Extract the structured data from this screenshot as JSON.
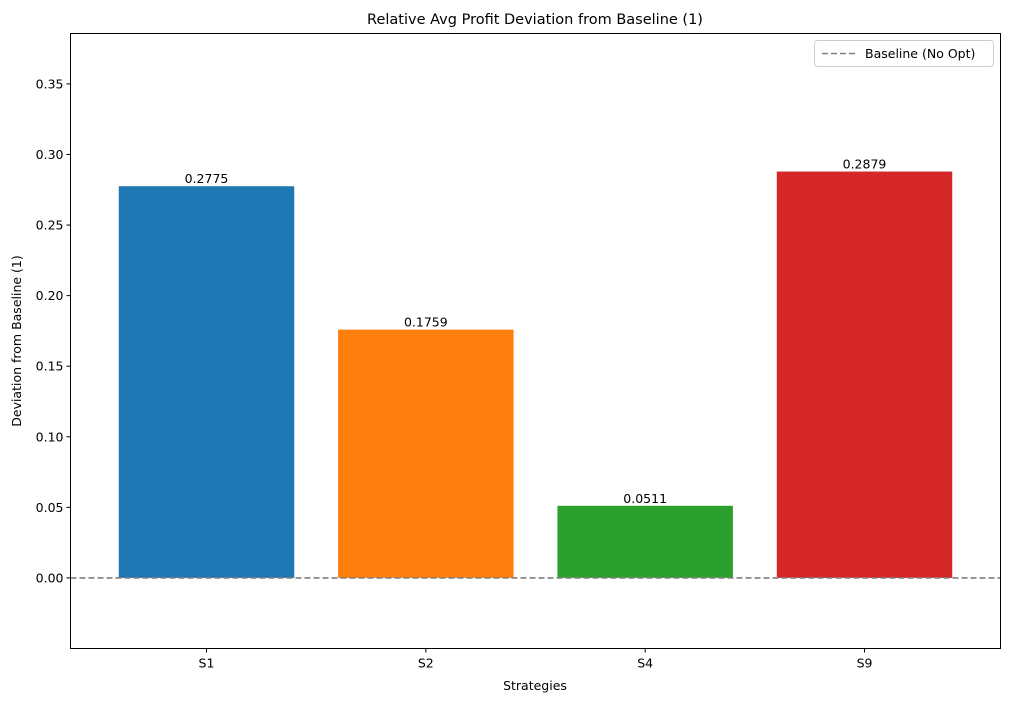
{
  "chart_data": {
    "type": "bar",
    "title": "Relative Avg Profit Deviation from Baseline (1)",
    "xlabel": "Strategies",
    "ylabel": "Deviation from Baseline (1)",
    "categories": [
      "S1",
      "S2",
      "S4",
      "S9"
    ],
    "values": [
      0.2775,
      0.1759,
      0.0511,
      0.2879
    ],
    "value_labels": [
      "0.2775",
      "0.1759",
      "0.0511",
      "0.2879"
    ],
    "colors": [
      "#1f77b4",
      "#ff7f0e",
      "#2ca02c",
      "#d62728"
    ],
    "ylim": [
      -0.05,
      0.3857
    ],
    "yticks": [
      0.0,
      0.05,
      0.1,
      0.15,
      0.2,
      0.25,
      0.3,
      0.35
    ],
    "ytick_labels": [
      "0.00",
      "0.05",
      "0.10",
      "0.15",
      "0.20",
      "0.25",
      "0.30",
      "0.35"
    ],
    "baseline": {
      "value": 0,
      "label": "Baseline (No Opt)",
      "color": "#808080",
      "style": "dashed"
    },
    "legend_position": "top-right",
    "grid": false
  }
}
